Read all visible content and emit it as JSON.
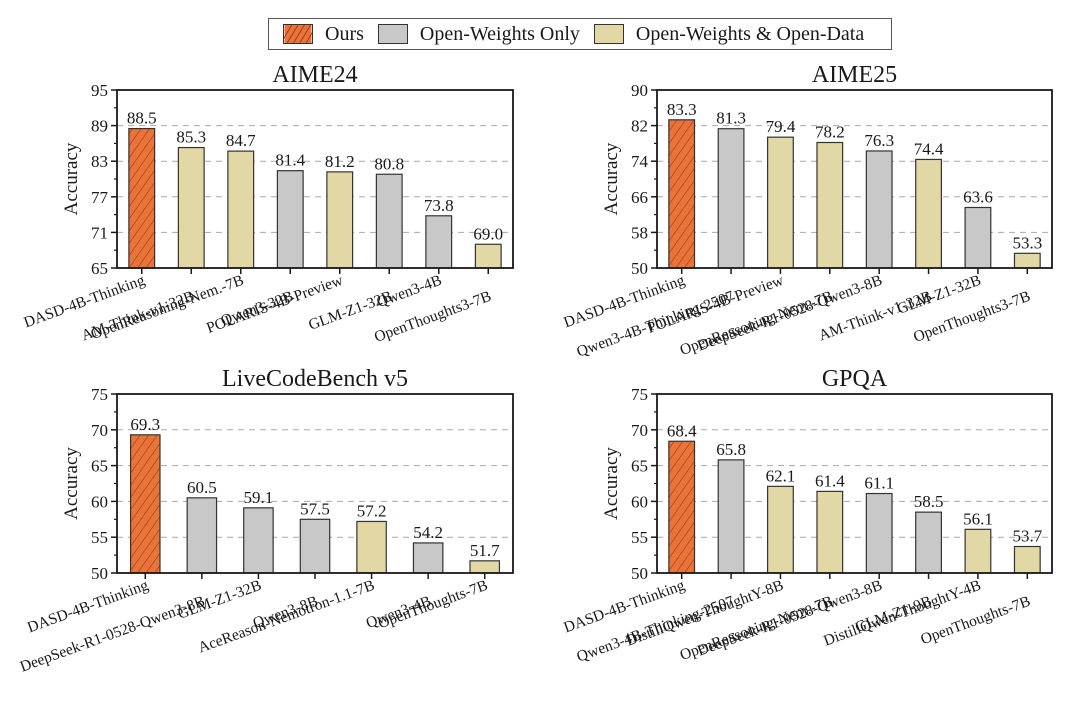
{
  "legend": {
    "items": [
      {
        "label": "Ours",
        "category": "ours"
      },
      {
        "label": "Open-Weights Only",
        "category": "ow"
      },
      {
        "label": "Open-Weights & Open-Data",
        "category": "owod"
      }
    ]
  },
  "colors": {
    "ours": "#e8743a",
    "ours_hatch": "#9a3a12",
    "ow": "#c8c8c8",
    "owod": "#e2d8a6",
    "grid": "#aaaaaa",
    "axis": "#1a1a1a"
  },
  "chart_data": [
    {
      "type": "bar",
      "title": "AIME24",
      "xlabel": "",
      "ylabel": "Accuracy",
      "ylim": [
        65,
        95
      ],
      "yticks": [
        65,
        71,
        77,
        83,
        89,
        95
      ],
      "grid": true,
      "categories": [
        "DASD-4B-Thinking",
        "AM-Think-v1-32B",
        "OpenReasoning-Nem.-7B",
        "Qwen3-32B",
        "POLARIS-4B-Preview",
        "GLM-Z1-32B",
        "Qwen3-4B",
        "OpenThoughts3-7B"
      ],
      "values": [
        88.5,
        85.3,
        84.7,
        81.4,
        81.2,
        80.8,
        73.8,
        69.0
      ],
      "value_labels": [
        "88.5",
        "85.3",
        "84.7",
        "81.4",
        "81.2",
        "80.8",
        "73.8",
        "69.0"
      ],
      "groups": [
        "ours",
        "owod",
        "owod",
        "ow",
        "owod",
        "ow",
        "ow",
        "owod"
      ]
    },
    {
      "type": "bar",
      "title": "AIME25",
      "xlabel": "",
      "ylabel": "Accuracy",
      "ylim": [
        50,
        90
      ],
      "yticks": [
        50,
        58,
        66,
        74,
        82,
        90
      ],
      "grid": true,
      "categories": [
        "DASD-4B-Thinking",
        "Qwen3-4B-Thinking-2507",
        "POLARIS-4B-Preview",
        "OpenReasoning-Nem.-7B",
        "DeepSeek-R1-0528-Qwen3-8B",
        "AM-Think-v1-32B",
        "GLM-Z1-32B",
        "OpenThoughts3-7B"
      ],
      "values": [
        83.3,
        81.3,
        79.4,
        78.2,
        76.3,
        74.4,
        63.6,
        53.3
      ],
      "value_labels": [
        "83.3",
        "81.3",
        "79.4",
        "78.2",
        "76.3",
        "74.4",
        "63.6",
        "53.3"
      ],
      "groups": [
        "ours",
        "ow",
        "owod",
        "owod",
        "ow",
        "owod",
        "ow",
        "owod"
      ]
    },
    {
      "type": "bar",
      "title": "LiveCodeBench v5",
      "xlabel": "",
      "ylabel": "Accuracy",
      "ylim": [
        50,
        75
      ],
      "yticks": [
        50,
        55,
        60,
        65,
        70,
        75
      ],
      "grid": true,
      "categories": [
        "DASD-4B-Thinking",
        "DeepSeek-R1-0528-Qwen3-8B",
        "GLM-Z1-32B",
        "Qwen3-8B",
        "AceReason-Nemotron-1.1-7B",
        "Qwen3-4B",
        "OpenThoughts-7B"
      ],
      "values": [
        69.3,
        60.5,
        59.1,
        57.5,
        57.2,
        54.2,
        51.7
      ],
      "value_labels": [
        "69.3",
        "60.5",
        "59.1",
        "57.5",
        "57.2",
        "54.2",
        "51.7"
      ],
      "groups": [
        "ours",
        "ow",
        "ow",
        "ow",
        "owod",
        "ow",
        "owod"
      ]
    },
    {
      "type": "bar",
      "title": "GPQA",
      "xlabel": "",
      "ylabel": "Accuracy",
      "ylim": [
        50,
        75
      ],
      "yticks": [
        50,
        55,
        60,
        65,
        70,
        75
      ],
      "grid": true,
      "categories": [
        "DASD-4B-Thinking",
        "Qwen3-4B-Thinking-2507",
        "DistillQwen-ThoughtY-8B",
        "OpenReasoning-Nem.-7B",
        "DeepSeek-R1-0528-Qwen3-8B",
        "GLM-Z1-9B",
        "DistillQwen-ThoughtY-4B",
        "OpenThoughts-7B"
      ],
      "values": [
        68.4,
        65.8,
        62.1,
        61.4,
        61.1,
        58.5,
        56.1,
        53.7
      ],
      "value_labels": [
        "68.4",
        "65.8",
        "62.1",
        "61.4",
        "61.1",
        "58.5",
        "56.1",
        "53.7"
      ],
      "groups": [
        "ours",
        "ow",
        "owod",
        "owod",
        "ow",
        "ow",
        "owod",
        "owod"
      ]
    }
  ]
}
